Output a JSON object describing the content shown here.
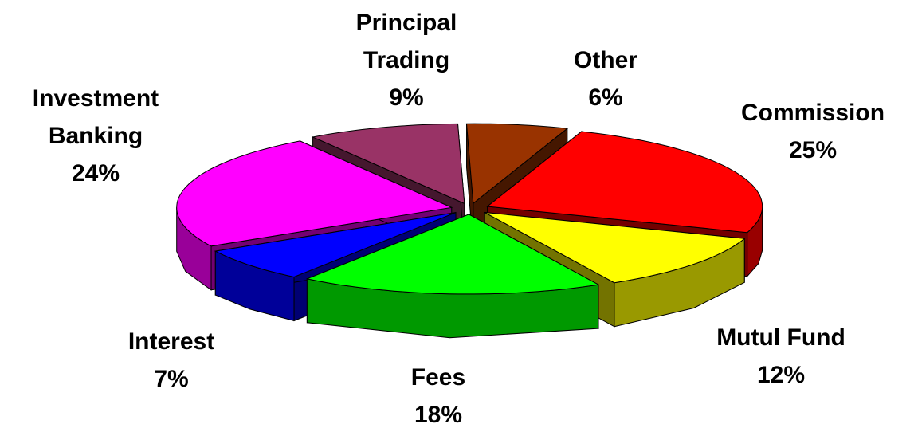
{
  "chart_data": {
    "type": "pie3d",
    "categories": [
      "Commission",
      "Mutul Fund",
      "Fees",
      "Interest",
      "Investment Banking",
      "Principal Trading",
      "Other"
    ],
    "values": [
      25,
      12,
      18,
      7,
      24,
      9,
      6
    ],
    "value_labels": [
      "25%",
      "12%",
      "18%",
      "7%",
      "24%",
      "9%",
      "6%"
    ],
    "colors": [
      "#ff0000",
      "#ffff00",
      "#00ff00",
      "#0000ff",
      "#ff00ff",
      "#993366",
      "#993300"
    ]
  }
}
